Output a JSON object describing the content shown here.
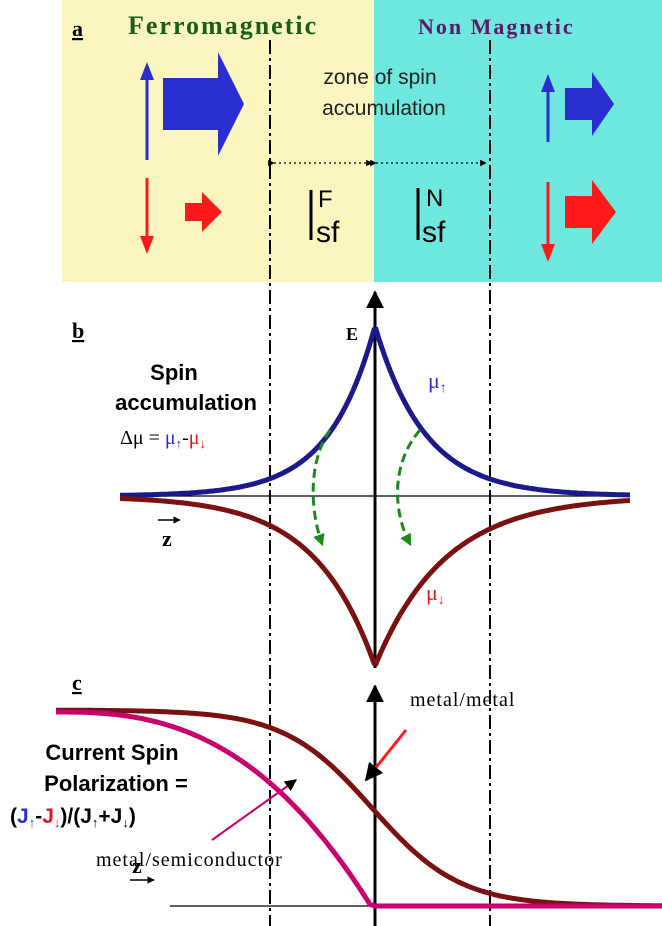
{
  "panel_a": {
    "label": "a",
    "ferro_title": "Ferromagnetic",
    "nonmag_title": "Non Magnetic",
    "zone_line1": "zone of spin",
    "zone_line2": "accumulation",
    "lsf_F_sup": "F",
    "lsf_N_sup": "N",
    "lsf_sub": "sf",
    "colors": {
      "ferro_bg": "#fbf5bf",
      "nonmag_bg": "#6ee8de",
      "up": "#2b2fd0",
      "down": "#ff1a1a"
    }
  },
  "panel_b": {
    "label": "b",
    "title_line1": "Spin",
    "title_line2": "accumulation",
    "delta_prefix": "Δμ = ",
    "mu_up": "μ",
    "mu_down": "μ",
    "minus": "-",
    "axis_e": "E",
    "axis_z": "z",
    "colors": {
      "mu_up_curve": "#1a1a8c",
      "mu_down_curve": "#7a1010",
      "relax": "#1b8a1b"
    }
  },
  "panel_c": {
    "label": "c",
    "title_line1": "Current Spin",
    "title_line2": "Polarization =",
    "formula_J1": "J",
    "formula_J2": "J",
    "formula_J3": "J",
    "formula_J4": "J",
    "metal_metal": "metal/metal",
    "metal_semi": "metal/semiconductor",
    "axis_z": "z",
    "colors": {
      "metal_metal_curve": "#7a1010",
      "metal_semi_curve": "#c8006e"
    }
  }
}
